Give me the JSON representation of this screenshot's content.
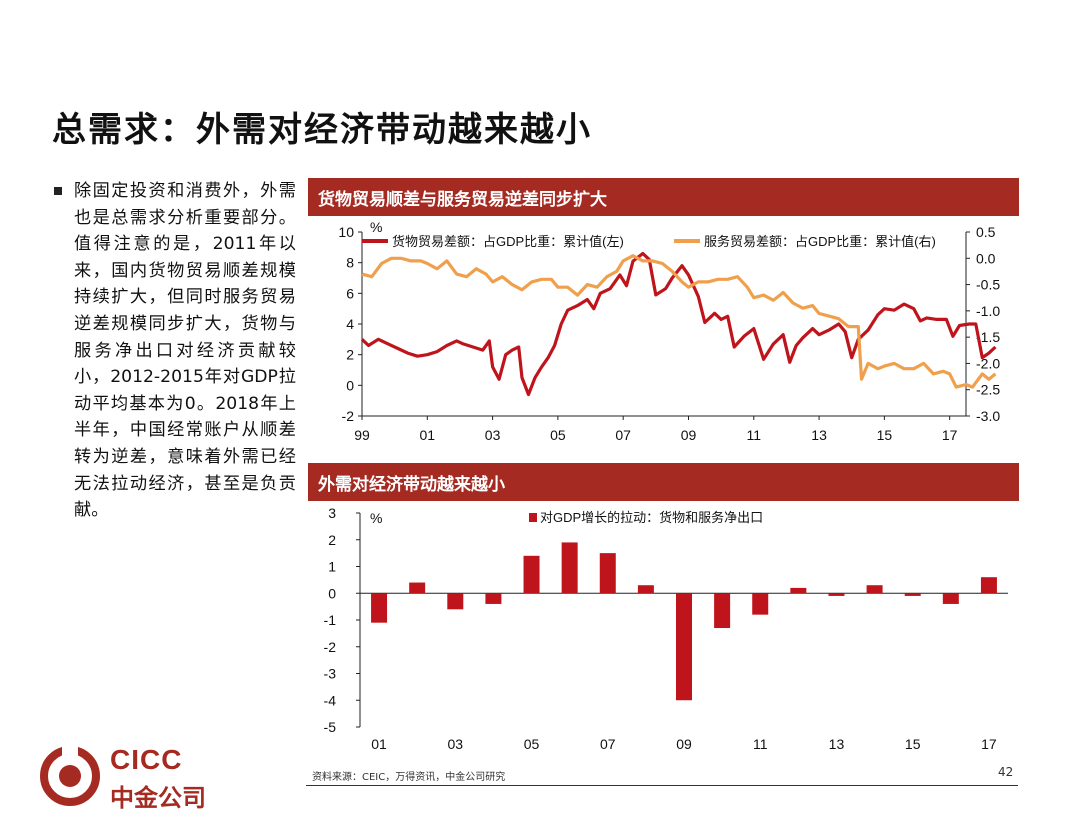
{
  "page": {
    "title": "总需求：外需对经济带动越来越小",
    "bullet": "除固定投资和消费外，外需也是总需求分析重要部分。值得注意的是，2011年以来，国内货物贸易顺差规模持续扩大，但同时服务贸易逆差规模同步扩大，货物与服务净出口对经济贡献较小，2012-2015年对GDP拉动平均基本为0。2018年上半年，中国经常账户从顺差转为逆差，意味着外需已经无法拉动经济，甚至是负贡献。",
    "source": "资料来源：CEIC，万得资讯，中金公司研究",
    "page_number": "42",
    "logo": {
      "en": "CICC",
      "zh": "中金公司"
    }
  },
  "colors": {
    "header": "#a52a21",
    "goods": "#c0141c",
    "services": "#f0a04c",
    "bar": "#c0141c"
  },
  "chart_data": [
    {
      "type": "line",
      "title": "货物贸易顺差与服务贸易逆差同步扩大",
      "y_unit": "%",
      "ylim_left": [
        -2,
        10
      ],
      "yticks_left": [
        "10",
        "8",
        "6",
        "4",
        "2",
        "0",
        "-2"
      ],
      "ylim_right": [
        -3.0,
        0.5
      ],
      "yticks_right": [
        "0.5",
        "0.0",
        "-0.5",
        "-1.0",
        "-1.5",
        "-2.0",
        "-2.5",
        "-3.0"
      ],
      "xlim": [
        1999.0,
        2017.5
      ],
      "xticks": [
        "99",
        "01",
        "03",
        "05",
        "07",
        "09",
        "11",
        "13",
        "15",
        "17"
      ],
      "series": [
        {
          "name": "货物贸易差额：占GDP比重：累计值(左)",
          "axis": "left",
          "points": [
            [
              1999.0,
              3.0
            ],
            [
              1999.2,
              2.6
            ],
            [
              1999.5,
              3.0
            ],
            [
              1999.8,
              2.7
            ],
            [
              2000.1,
              2.4
            ],
            [
              2000.4,
              2.1
            ],
            [
              2000.7,
              1.9
            ],
            [
              2001.0,
              2.0
            ],
            [
              2001.3,
              2.2
            ],
            [
              2001.6,
              2.6
            ],
            [
              2001.9,
              2.9
            ],
            [
              2002.1,
              2.7
            ],
            [
              2002.4,
              2.5
            ],
            [
              2002.7,
              2.3
            ],
            [
              2002.9,
              2.9
            ],
            [
              2003.0,
              1.2
            ],
            [
              2003.2,
              0.4
            ],
            [
              2003.4,
              2.0
            ],
            [
              2003.6,
              2.3
            ],
            [
              2003.8,
              2.5
            ],
            [
              2003.9,
              0.5
            ],
            [
              2004.1,
              -0.6
            ],
            [
              2004.3,
              0.5
            ],
            [
              2004.5,
              1.2
            ],
            [
              2004.7,
              1.8
            ],
            [
              2004.9,
              2.6
            ],
            [
              2005.1,
              4.0
            ],
            [
              2005.3,
              4.9
            ],
            [
              2005.6,
              5.2
            ],
            [
              2005.9,
              5.6
            ],
            [
              2006.1,
              5.0
            ],
            [
              2006.3,
              6.0
            ],
            [
              2006.6,
              6.3
            ],
            [
              2006.9,
              7.2
            ],
            [
              2007.1,
              6.5
            ],
            [
              2007.3,
              8.1
            ],
            [
              2007.6,
              8.6
            ],
            [
              2007.8,
              8.2
            ],
            [
              2008.0,
              5.9
            ],
            [
              2008.3,
              6.3
            ],
            [
              2008.5,
              7.0
            ],
            [
              2008.8,
              7.8
            ],
            [
              2009.0,
              7.2
            ],
            [
              2009.3,
              5.8
            ],
            [
              2009.5,
              4.1
            ],
            [
              2009.8,
              4.7
            ],
            [
              2010.0,
              4.3
            ],
            [
              2010.2,
              4.5
            ],
            [
              2010.4,
              2.5
            ],
            [
              2010.7,
              3.2
            ],
            [
              2011.0,
              3.7
            ],
            [
              2011.3,
              1.7
            ],
            [
              2011.6,
              2.7
            ],
            [
              2011.9,
              3.3
            ],
            [
              2012.1,
              1.5
            ],
            [
              2012.3,
              2.6
            ],
            [
              2012.5,
              3.1
            ],
            [
              2012.8,
              3.7
            ],
            [
              2013.0,
              3.3
            ],
            [
              2013.3,
              3.6
            ],
            [
              2013.6,
              4.0
            ],
            [
              2013.8,
              3.5
            ],
            [
              2014.0,
              1.8
            ],
            [
              2014.2,
              3.0
            ],
            [
              2014.5,
              3.6
            ],
            [
              2014.8,
              4.6
            ],
            [
              2015.0,
              5.0
            ],
            [
              2015.3,
              4.9
            ],
            [
              2015.6,
              5.3
            ],
            [
              2015.9,
              5.0
            ],
            [
              2016.1,
              4.2
            ],
            [
              2016.3,
              4.4
            ],
            [
              2016.6,
              4.3
            ],
            [
              2016.9,
              4.3
            ],
            [
              2017.1,
              3.2
            ],
            [
              2017.3,
              3.9
            ],
            [
              2017.6,
              4.0
            ],
            [
              2017.8,
              4.0
            ],
            [
              2018.0,
              1.8
            ],
            [
              2018.2,
              2.1
            ],
            [
              2018.4,
              2.5
            ]
          ]
        },
        {
          "name": "服务贸易差额：占GDP比重：累计值(右)",
          "axis": "right",
          "points": [
            [
              1999.0,
              -0.3
            ],
            [
              1999.3,
              -0.35
            ],
            [
              1999.6,
              -0.1
            ],
            [
              1999.9,
              0.0
            ],
            [
              2000.2,
              0.0
            ],
            [
              2000.5,
              -0.05
            ],
            [
              2000.8,
              -0.05
            ],
            [
              2001.0,
              -0.1
            ],
            [
              2001.3,
              -0.2
            ],
            [
              2001.6,
              -0.05
            ],
            [
              2001.9,
              -0.3
            ],
            [
              2002.2,
              -0.35
            ],
            [
              2002.5,
              -0.2
            ],
            [
              2002.8,
              -0.3
            ],
            [
              2003.0,
              -0.45
            ],
            [
              2003.3,
              -0.35
            ],
            [
              2003.6,
              -0.5
            ],
            [
              2003.9,
              -0.6
            ],
            [
              2004.2,
              -0.45
            ],
            [
              2004.5,
              -0.4
            ],
            [
              2004.8,
              -0.4
            ],
            [
              2005.0,
              -0.55
            ],
            [
              2005.3,
              -0.55
            ],
            [
              2005.6,
              -0.7
            ],
            [
              2005.9,
              -0.5
            ],
            [
              2006.2,
              -0.55
            ],
            [
              2006.5,
              -0.35
            ],
            [
              2006.8,
              -0.25
            ],
            [
              2007.0,
              -0.05
            ],
            [
              2007.3,
              0.05
            ],
            [
              2007.6,
              -0.05
            ],
            [
              2007.9,
              -0.05
            ],
            [
              2008.2,
              -0.1
            ],
            [
              2008.5,
              -0.25
            ],
            [
              2008.8,
              -0.45
            ],
            [
              2009.0,
              -0.55
            ],
            [
              2009.3,
              -0.45
            ],
            [
              2009.6,
              -0.45
            ],
            [
              2009.9,
              -0.4
            ],
            [
              2010.2,
              -0.4
            ],
            [
              2010.5,
              -0.35
            ],
            [
              2010.8,
              -0.55
            ],
            [
              2011.0,
              -0.75
            ],
            [
              2011.3,
              -0.7
            ],
            [
              2011.6,
              -0.8
            ],
            [
              2011.9,
              -0.65
            ],
            [
              2012.2,
              -0.85
            ],
            [
              2012.5,
              -0.95
            ],
            [
              2012.8,
              -0.9
            ],
            [
              2013.0,
              -1.05
            ],
            [
              2013.3,
              -1.1
            ],
            [
              2013.6,
              -1.15
            ],
            [
              2013.9,
              -1.3
            ],
            [
              2014.2,
              -1.3
            ],
            [
              2014.3,
              -2.3
            ],
            [
              2014.5,
              -2.0
            ],
            [
              2014.8,
              -2.1
            ],
            [
              2015.0,
              -2.05
            ],
            [
              2015.3,
              -2.0
            ],
            [
              2015.6,
              -2.1
            ],
            [
              2015.9,
              -2.1
            ],
            [
              2016.2,
              -2.0
            ],
            [
              2016.5,
              -2.2
            ],
            [
              2016.8,
              -2.15
            ],
            [
              2017.0,
              -2.2
            ],
            [
              2017.2,
              -2.45
            ],
            [
              2017.5,
              -2.4
            ],
            [
              2017.7,
              -2.45
            ],
            [
              2018.0,
              -2.2
            ],
            [
              2018.2,
              -2.3
            ],
            [
              2018.4,
              -2.2
            ]
          ]
        }
      ]
    },
    {
      "type": "bar",
      "title": "外需对经济带动越来越小",
      "y_unit": "%",
      "ylim": [
        -5,
        3
      ],
      "yticks": [
        "3",
        "2",
        "1",
        "0",
        "-1",
        "-2",
        "-3",
        "-4",
        "-5"
      ],
      "categories": [
        "01",
        "02",
        "03",
        "04",
        "05",
        "06",
        "07",
        "08",
        "09",
        "10",
        "11",
        "12",
        "13",
        "14",
        "15",
        "16",
        "17"
      ],
      "xtick_labels": [
        "01",
        "",
        "03",
        "",
        "05",
        "",
        "07",
        "",
        "09",
        "",
        "11",
        "",
        "13",
        "",
        "15",
        "",
        "17"
      ],
      "series": [
        {
          "name": "对GDP增长的拉动：货物和服务净出口",
          "values": [
            -1.1,
            0.4,
            -0.6,
            -0.4,
            1.4,
            1.9,
            1.5,
            0.3,
            -4.0,
            -1.3,
            -0.8,
            0.2,
            -0.1,
            0.3,
            -0.1,
            -0.4,
            0.6
          ]
        }
      ]
    }
  ]
}
